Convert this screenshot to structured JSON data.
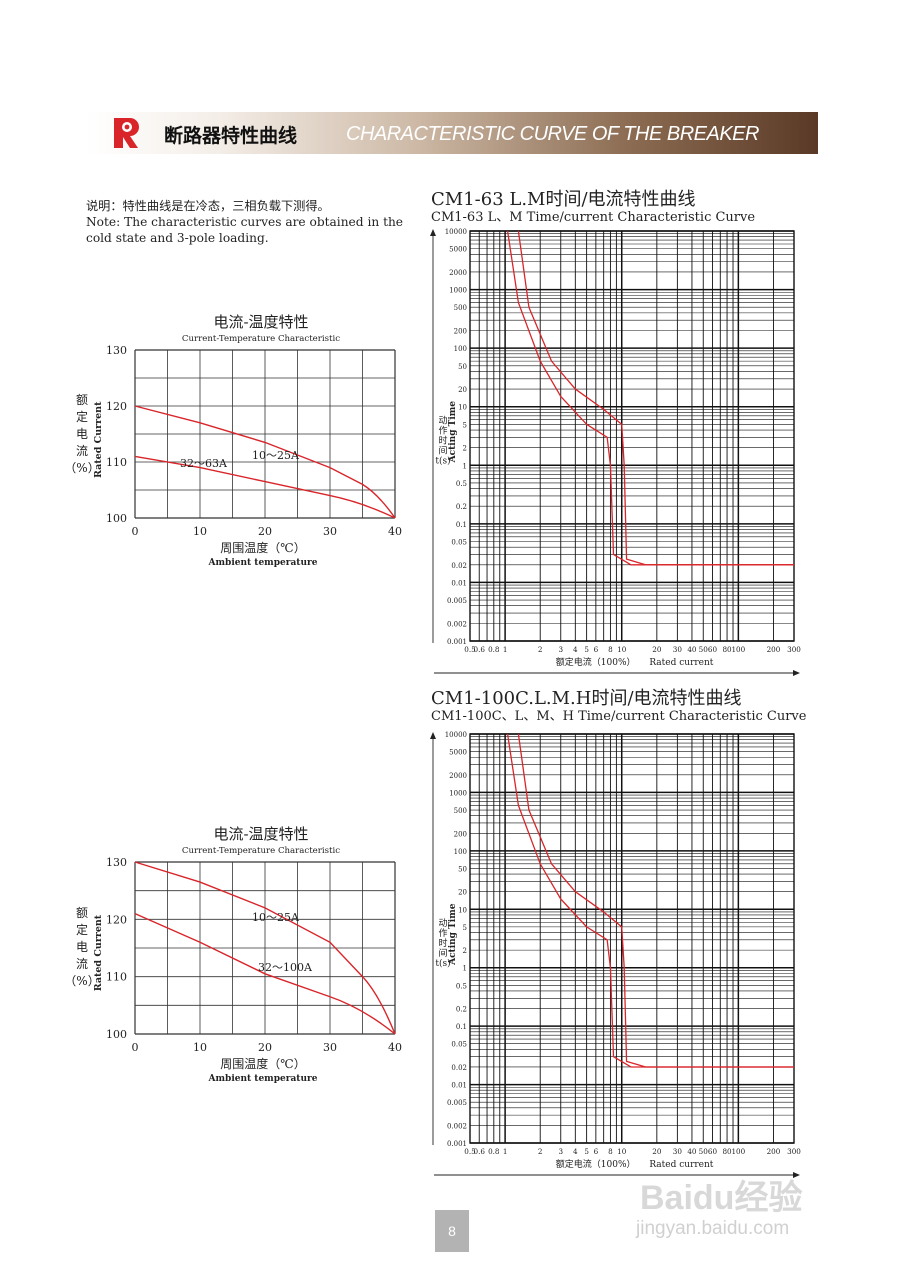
{
  "header": {
    "title_cn": "断路器特性曲线",
    "title_en": "CHARACTERISTIC CURVE OF THE BREAKER",
    "logo": "breaker-logo-icon",
    "band_colors": [
      "#ffffff",
      "#5a3a26"
    ],
    "logo_color": "#d9252a"
  },
  "note": {
    "cn": "说明：特性曲线是在冷态，三相负载下测得。",
    "en1": "Note: The characteristic curves are obtained in the",
    "en2": "cold state and 3-pole loading."
  },
  "temp_chart_common": {
    "title_cn": "电流-温度特性",
    "title_en": "Current-Temperature Characteristic",
    "ylabel_cn": [
      "额",
      "定",
      "电",
      "流",
      "（%）"
    ],
    "ylabel_en": "Rated Current",
    "xlabel_cn": "周围温度（℃）",
    "xlabel_en": "Ambient temperature",
    "xticks": [
      "0",
      "10",
      "20",
      "30",
      "40"
    ],
    "yticks": [
      "100",
      "110",
      "120",
      "130"
    ]
  },
  "tc_common": {
    "ylabel_cn": [
      "动",
      "作",
      "时",
      "间",
      "t(s)"
    ],
    "ylabel_en": "Acting Time",
    "xlabel_cn": "额定电流（100%）",
    "xlabel_en": "Rated current",
    "yticks": [
      "10000",
      "5000",
      "2000",
      "1000",
      "500",
      "200",
      "100",
      "50",
      "20",
      "10",
      "5",
      "2",
      "1",
      "0.5",
      "0.2",
      "0.1",
      "0.05",
      "0.02",
      "0.01",
      "0.005",
      "0.002",
      "0.001"
    ],
    "xticks": [
      "0.5",
      "0.6",
      "0.8",
      "1",
      "2",
      "3",
      "4",
      "5",
      "6",
      "8",
      "10",
      "20",
      "30",
      "40",
      "50",
      "60",
      "80",
      "100",
      "200",
      "300"
    ]
  },
  "chart_data": [
    {
      "type": "line",
      "title": "电流-温度特性 Current-Temperature Characteristic",
      "xlabel": "周围温度（℃） Ambient temperature",
      "ylabel": "额定电流（%） Rated Current",
      "xlim": [
        0,
        40
      ],
      "ylim": [
        100,
        130
      ],
      "series": [
        {
          "name": "10～25A",
          "x": [
            0,
            10,
            20,
            30,
            35,
            40
          ],
          "y": [
            120,
            117,
            113.5,
            109,
            106,
            100
          ]
        },
        {
          "name": "32～63A",
          "x": [
            0,
            10,
            20,
            30,
            40
          ],
          "y": [
            111,
            109,
            106.5,
            104,
            100
          ]
        }
      ]
    },
    {
      "type": "line",
      "title": "CM1-63 L.M时间/电流特性曲线",
      "subtitle": "CM1-63 L、M Time/current Characteristic Curve",
      "xscale": "log",
      "yscale": "log",
      "xlabel": "额定电流（100%） Rated current",
      "ylabel": "动作时间 t(s) Acting Time",
      "xlim": [
        0.5,
        300
      ],
      "ylim": [
        0.001,
        10000
      ],
      "series": [
        {
          "name": "lower",
          "x": [
            1.05,
            1.3,
            2,
            3,
            5,
            7.5,
            8,
            8.5,
            12,
            300
          ],
          "y": [
            10000,
            600,
            60,
            15,
            5,
            3,
            1,
            0.03,
            0.02,
            0.02
          ]
        },
        {
          "name": "upper",
          "x": [
            1.3,
            1.6,
            2.5,
            4,
            7,
            10,
            10.5,
            11,
            16,
            300
          ],
          "y": [
            10000,
            500,
            60,
            20,
            9,
            5,
            1,
            0.025,
            0.02,
            0.02
          ]
        }
      ]
    },
    {
      "type": "line",
      "title": "电流-温度特性 Current-Temperature Characteristic",
      "xlabel": "周围温度（℃） Ambient temperature",
      "ylabel": "额定电流（%） Rated Current",
      "xlim": [
        0,
        40
      ],
      "ylim": [
        100,
        130
      ],
      "series": [
        {
          "name": "10～25A",
          "x": [
            0,
            10,
            20,
            30,
            35,
            40
          ],
          "y": [
            130,
            126.5,
            122,
            116,
            110,
            100
          ]
        },
        {
          "name": "32～100A",
          "x": [
            0,
            10,
            20,
            30,
            40
          ],
          "y": [
            121,
            116,
            110.5,
            106.5,
            100
          ]
        }
      ]
    },
    {
      "type": "line",
      "title": "CM1-100C.L.M.H时间/电流特性曲线",
      "subtitle": "CM1-100C、L、M、H Time/current Characteristic Curve",
      "xscale": "log",
      "yscale": "log",
      "xlabel": "额定电流（100%） Rated current",
      "ylabel": "动作时间 t(s) Acting Time",
      "xlim": [
        0.5,
        300
      ],
      "ylim": [
        0.001,
        10000
      ],
      "series": [
        {
          "name": "lower",
          "x": [
            1.05,
            1.3,
            2,
            3,
            5,
            7.5,
            8,
            8.5,
            12,
            300
          ],
          "y": [
            10000,
            600,
            60,
            15,
            5,
            3,
            1,
            0.03,
            0.02,
            0.02
          ]
        },
        {
          "name": "upper",
          "x": [
            1.3,
            1.6,
            2.5,
            4,
            7,
            10,
            10.5,
            11,
            16,
            300
          ],
          "y": [
            10000,
            500,
            60,
            20,
            9,
            5,
            1,
            0.025,
            0.02,
            0.02
          ]
        }
      ]
    }
  ],
  "page_number": "8",
  "watermark": {
    "brand": "Baidu经验",
    "url": "jingyan.baidu.com"
  }
}
